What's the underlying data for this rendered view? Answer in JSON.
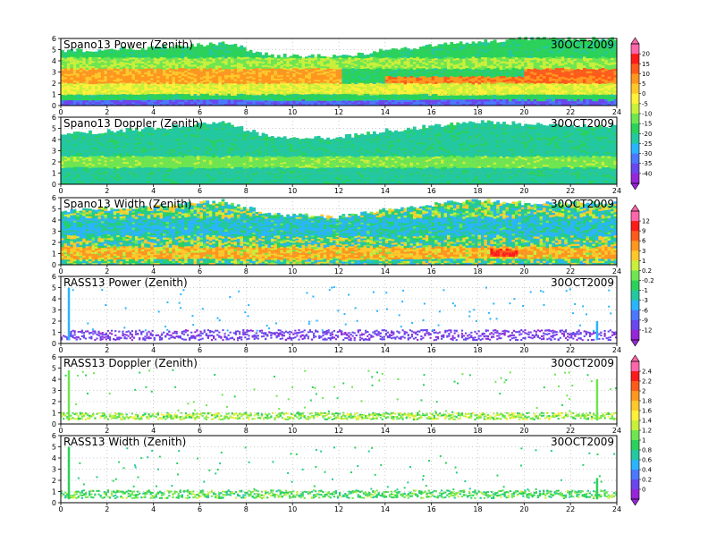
{
  "figure": {
    "date_label": "30OCT2009"
  },
  "chart_data": [
    {
      "type": "heatmap",
      "title": "Spano13 Power (Zenith)",
      "date": "30OCT2009",
      "xlim": [
        0,
        24
      ],
      "ylim": [
        0,
        6
      ],
      "x_ticks": [
        0,
        2,
        4,
        6,
        8,
        10,
        12,
        14,
        16,
        18,
        20,
        22,
        24
      ],
      "y_ticks": [
        0,
        1,
        2,
        3,
        4,
        5,
        6
      ],
      "colorbar": "power",
      "profile": {
        "top_km": [
          [
            0,
            4.9
          ],
          [
            4,
            5.2
          ],
          [
            7,
            5.6
          ],
          [
            9,
            4.5
          ],
          [
            12,
            4.4
          ],
          [
            14,
            5.0
          ],
          [
            18,
            5.7
          ],
          [
            20,
            6.0
          ],
          [
            24,
            6.0
          ]
        ],
        "bands": [
          {
            "lo": 2.0,
            "hi": 3.3,
            "value": 6,
            "x0": 0,
            "x1": 12
          },
          {
            "lo": 1.4,
            "hi": 2.6,
            "value": 9,
            "x0": 14,
            "x1": 24
          },
          {
            "lo": 2.6,
            "hi": 3.6,
            "value": 12,
            "x0": 20,
            "x1": 24
          },
          {
            "lo": 1.0,
            "hi": 2.0,
            "value": -5,
            "x0": 0,
            "x1": 24
          },
          {
            "lo": 3.3,
            "hi": 4.3,
            "value": -10,
            "x0": 0,
            "x1": 24
          },
          {
            "lo": 0.0,
            "hi": 0.5,
            "value": -35,
            "x0": 0,
            "x1": 24
          }
        ],
        "background": -18
      }
    },
    {
      "type": "heatmap",
      "title": "Spano13 Doppler (Zenith)",
      "date": "30OCT2009",
      "xlim": [
        0,
        24
      ],
      "ylim": [
        0,
        6
      ],
      "x_ticks": [
        0,
        2,
        4,
        6,
        8,
        10,
        12,
        14,
        16,
        18,
        20,
        22,
        24
      ],
      "y_ticks": [
        0,
        1,
        2,
        3,
        4,
        5,
        6
      ],
      "colorbar": "none",
      "profile": {
        "top_km": [
          [
            0,
            4.5
          ],
          [
            4,
            5.0
          ],
          [
            7,
            5.5
          ],
          [
            9,
            4.2
          ],
          [
            12,
            4.2
          ],
          [
            14,
            4.8
          ],
          [
            18,
            5.6
          ],
          [
            20,
            5.4
          ],
          [
            24,
            5.2
          ]
        ],
        "bands": [
          {
            "lo": 1.5,
            "hi": 2.5,
            "value": -12,
            "x0": 0,
            "x1": 24
          }
        ],
        "background": -22
      }
    },
    {
      "type": "heatmap",
      "title": "Spano13 Width (Zenith)",
      "date": "30OCT2009",
      "xlim": [
        0,
        24
      ],
      "ylim": [
        0,
        6
      ],
      "x_ticks": [
        0,
        2,
        4,
        6,
        8,
        10,
        12,
        14,
        16,
        18,
        20,
        22,
        24
      ],
      "y_ticks": [
        0,
        1,
        2,
        3,
        4,
        5,
        6
      ],
      "colorbar": "width",
      "profile": {
        "top_km": [
          [
            0,
            4.8
          ],
          [
            4,
            5.2
          ],
          [
            7,
            5.7
          ],
          [
            9,
            4.5
          ],
          [
            12,
            4.3
          ],
          [
            14,
            5.0
          ],
          [
            18,
            5.8
          ],
          [
            20,
            5.5
          ],
          [
            24,
            5.5
          ]
        ],
        "bands": [
          {
            "lo": 0.5,
            "hi": 1.6,
            "value": 3,
            "x0": 0,
            "x1": 24
          },
          {
            "lo": 2.6,
            "hi": 4.2,
            "value": -3,
            "x0": 0,
            "x1": 24
          },
          {
            "lo": 0.7,
            "hi": 1.4,
            "value": 9,
            "x0": 18.5,
            "x1": 19.6
          }
        ],
        "background": -1
      }
    },
    {
      "type": "heatmap",
      "title": "RASS13 Power (Zenith)",
      "date": "30OCT2009",
      "xlim": [
        0,
        24
      ],
      "ylim": [
        0,
        6
      ],
      "x_ticks": [
        0,
        2,
        4,
        6,
        8,
        10,
        12,
        14,
        16,
        18,
        20,
        22,
        24
      ],
      "y_ticks": [
        0,
        1,
        2,
        3,
        4,
        5,
        6
      ],
      "colorbar": "none",
      "profile": {
        "main_band": {
          "lo": 0.3,
          "hi": 1.2,
          "value": -11
        },
        "scatter_value": -5,
        "spikes": [
          {
            "x": 0.3,
            "top": 5.0
          },
          {
            "x": 23.1,
            "top": 2.0
          }
        ]
      }
    },
    {
      "type": "heatmap",
      "title": "RASS13 Doppler (Zenith)",
      "date": "30OCT2009",
      "xlim": [
        0,
        24
      ],
      "ylim": [
        0,
        6
      ],
      "x_ticks": [
        0,
        2,
        4,
        6,
        8,
        10,
        12,
        14,
        16,
        18,
        20,
        22,
        24
      ],
      "y_ticks": [
        0,
        1,
        2,
        3,
        4,
        5,
        6
      ],
      "colorbar": "rass",
      "profile": {
        "main_band": {
          "lo": 0.4,
          "hi": 1.0,
          "value": 1.2
        },
        "scatter_value": 1.0,
        "spikes": [
          {
            "x": 0.3,
            "top": 4.8
          },
          {
            "x": 23.1,
            "top": 4.0
          }
        ]
      }
    },
    {
      "type": "heatmap",
      "title": "RASS13 Width (Zenith)",
      "date": "30OCT2009",
      "xlim": [
        0,
        24
      ],
      "ylim": [
        0,
        6
      ],
      "x_ticks": [
        0,
        2,
        4,
        6,
        8,
        10,
        12,
        14,
        16,
        18,
        20,
        22,
        24
      ],
      "y_ticks": [
        0,
        1,
        2,
        3,
        4,
        5,
        6
      ],
      "colorbar": "none",
      "profile": {
        "main_band": {
          "lo": 0.4,
          "hi": 1.1,
          "value": 1.0
        },
        "scatter_value": 0.8,
        "spikes": [
          {
            "x": 0.3,
            "top": 5.0
          },
          {
            "x": 23.1,
            "top": 2.2
          }
        ]
      }
    }
  ],
  "colorbars": {
    "power": {
      "labels": [
        "20",
        "15",
        "10",
        "5",
        "0",
        "-5",
        "-10",
        "-15",
        "-20",
        "-25",
        "-30",
        "-35",
        "-40"
      ],
      "colors": [
        "#ff66aa",
        "#ff1a1a",
        "#ff5a1a",
        "#ff961e",
        "#ffc82a",
        "#fff03a",
        "#c8f03a",
        "#6ee650",
        "#2ad25a",
        "#22c8a0",
        "#2ab4ff",
        "#4a78ff",
        "#6a46ee",
        "#9626d8"
      ]
    },
    "width": {
      "labels": [
        "12",
        "9",
        "6",
        "3",
        "1",
        "0.2",
        "-0.2",
        "-1",
        "-3",
        "-6",
        "-9",
        "-12"
      ],
      "colors": [
        "#ff66aa",
        "#ff1a1a",
        "#ff5a1a",
        "#ff961e",
        "#ffc82a",
        "#c8f03a",
        "#6ee650",
        "#2ad25a",
        "#22c8a0",
        "#2ab4ff",
        "#4a78ff",
        "#6a46ee",
        "#9626d8"
      ]
    },
    "rass": {
      "labels": [
        "2.4",
        "2.2",
        "2",
        "1.8",
        "1.6",
        "1.4",
        "1.2",
        "1",
        "0.8",
        "0.6",
        "0.4",
        "0.2",
        "0"
      ],
      "colors": [
        "#ff66aa",
        "#ff1a1a",
        "#ff5a1a",
        "#ff961e",
        "#ffc82a",
        "#fff03a",
        "#c8f03a",
        "#6ee650",
        "#2ad25a",
        "#22c8a0",
        "#2ab4ff",
        "#4a78ff",
        "#6a46ee",
        "#9626d8"
      ]
    }
  }
}
